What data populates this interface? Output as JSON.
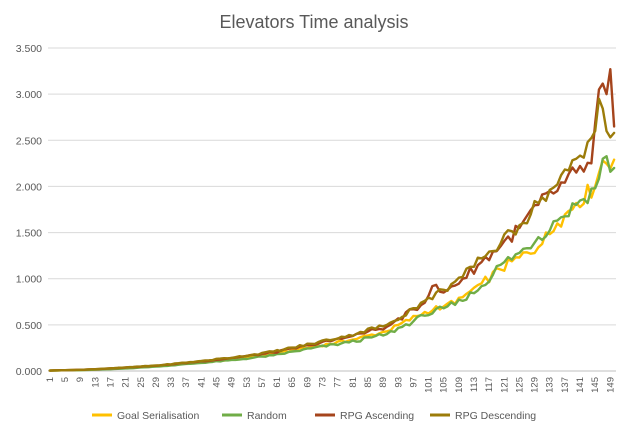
{
  "chart_data": {
    "type": "line",
    "title": "Elevators Time analysis",
    "xlabel": "",
    "ylabel": "",
    "x_range": [
      1,
      150
    ],
    "x_tick_labels": [
      "1",
      "5",
      "9",
      "13",
      "17",
      "21",
      "25",
      "29",
      "33",
      "37",
      "41",
      "45",
      "49",
      "53",
      "57",
      "61",
      "65",
      "69",
      "73",
      "77",
      "81",
      "85",
      "89",
      "93",
      "97",
      "101",
      "105",
      "109",
      "113",
      "117",
      "121",
      "125",
      "129",
      "133",
      "137",
      "141",
      "145",
      "149"
    ],
    "ylim": [
      0,
      3500
    ],
    "y_ticks": [
      0,
      500,
      1000,
      1500,
      2000,
      2500,
      3000,
      3500
    ],
    "y_tick_labels": [
      "0.000",
      "0.500",
      "1.000",
      "1.500",
      "2.000",
      "2.500",
      "3.000",
      "3.500"
    ],
    "grid": "horizontal",
    "legend": "bottom",
    "series": [
      {
        "name": "Goal Serialisation",
        "color": "#FFC000",
        "points": [
          [
            1,
            5
          ],
          [
            10,
            12
          ],
          [
            20,
            30
          ],
          [
            30,
            55
          ],
          [
            40,
            90
          ],
          [
            50,
            130
          ],
          [
            60,
            185
          ],
          [
            70,
            260
          ],
          [
            80,
            330
          ],
          [
            90,
            430
          ],
          [
            100,
            640
          ],
          [
            105,
            700
          ],
          [
            110,
            800
          ],
          [
            115,
            950
          ],
          [
            120,
            1100
          ],
          [
            125,
            1230
          ],
          [
            130,
            1340
          ],
          [
            135,
            1600
          ],
          [
            140,
            1820
          ],
          [
            145,
            2000
          ],
          [
            147,
            2280
          ],
          [
            150,
            2290
          ]
        ]
      },
      {
        "name": "Random",
        "color": "#70AD47",
        "points": [
          [
            1,
            5
          ],
          [
            10,
            10
          ],
          [
            20,
            25
          ],
          [
            30,
            50
          ],
          [
            40,
            85
          ],
          [
            50,
            120
          ],
          [
            60,
            170
          ],
          [
            70,
            245
          ],
          [
            80,
            310
          ],
          [
            90,
            400
          ],
          [
            100,
            600
          ],
          [
            105,
            680
          ],
          [
            110,
            760
          ],
          [
            115,
            920
          ],
          [
            120,
            1150
          ],
          [
            125,
            1280
          ],
          [
            130,
            1450
          ],
          [
            135,
            1630
          ],
          [
            140,
            1800
          ],
          [
            145,
            1980
          ],
          [
            147,
            2300
          ],
          [
            150,
            2200
          ]
        ]
      },
      {
        "name": "RPG Ascending",
        "color": "#A5441C",
        "points": [
          [
            1,
            5
          ],
          [
            10,
            14
          ],
          [
            20,
            35
          ],
          [
            30,
            60
          ],
          [
            40,
            100
          ],
          [
            50,
            145
          ],
          [
            60,
            200
          ],
          [
            70,
            280
          ],
          [
            80,
            370
          ],
          [
            90,
            480
          ],
          [
            100,
            740
          ],
          [
            102,
            920
          ],
          [
            105,
            850
          ],
          [
            110,
            1000
          ],
          [
            115,
            1180
          ],
          [
            120,
            1350
          ],
          [
            125,
            1550
          ],
          [
            130,
            1800
          ],
          [
            135,
            1950
          ],
          [
            140,
            2150
          ],
          [
            144,
            2250
          ],
          [
            146,
            3050
          ],
          [
            148,
            3000
          ],
          [
            149,
            3270
          ],
          [
            150,
            2650
          ]
        ]
      },
      {
        "name": "RPG Descending",
        "color": "#9C7C0A",
        "points": [
          [
            1,
            5
          ],
          [
            10,
            14
          ],
          [
            20,
            36
          ],
          [
            30,
            62
          ],
          [
            40,
            105
          ],
          [
            50,
            150
          ],
          [
            60,
            210
          ],
          [
            70,
            295
          ],
          [
            80,
            390
          ],
          [
            90,
            500
          ],
          [
            100,
            760
          ],
          [
            105,
            880
          ],
          [
            110,
            1020
          ],
          [
            115,
            1220
          ],
          [
            120,
            1380
          ],
          [
            125,
            1580
          ],
          [
            130,
            1820
          ],
          [
            135,
            2020
          ],
          [
            140,
            2300
          ],
          [
            143,
            2480
          ],
          [
            145,
            2600
          ],
          [
            146,
            2950
          ],
          [
            148,
            2600
          ],
          [
            150,
            2580
          ]
        ]
      }
    ]
  }
}
